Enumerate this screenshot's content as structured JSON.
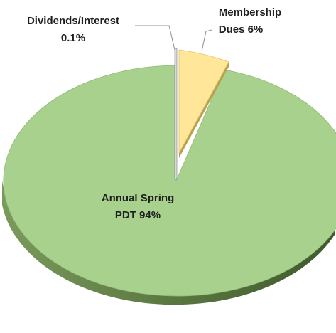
{
  "chart_data": {
    "type": "pie",
    "title": "",
    "slices": [
      {
        "name": "Annual Spring PDT",
        "value": 94,
        "label_line1": "Annual Spring",
        "label_line2": "PDT 94%",
        "color": "#a9d18e",
        "side_color": "#5e7a45"
      },
      {
        "name": "Membership Dues",
        "value": 6,
        "label_line1": "Membership",
        "label_line2": "Dues 6%",
        "color": "#ffe699",
        "side_color": "#b8a24e"
      },
      {
        "name": "Dividends/Interest",
        "value": 0.1,
        "label_line1": "Dividends/Interest",
        "label_line2": "0.1%",
        "color": "#bfbfbf",
        "side_color": "#7f7f7f"
      }
    ],
    "style": "3d-exploded",
    "legend": "none"
  }
}
